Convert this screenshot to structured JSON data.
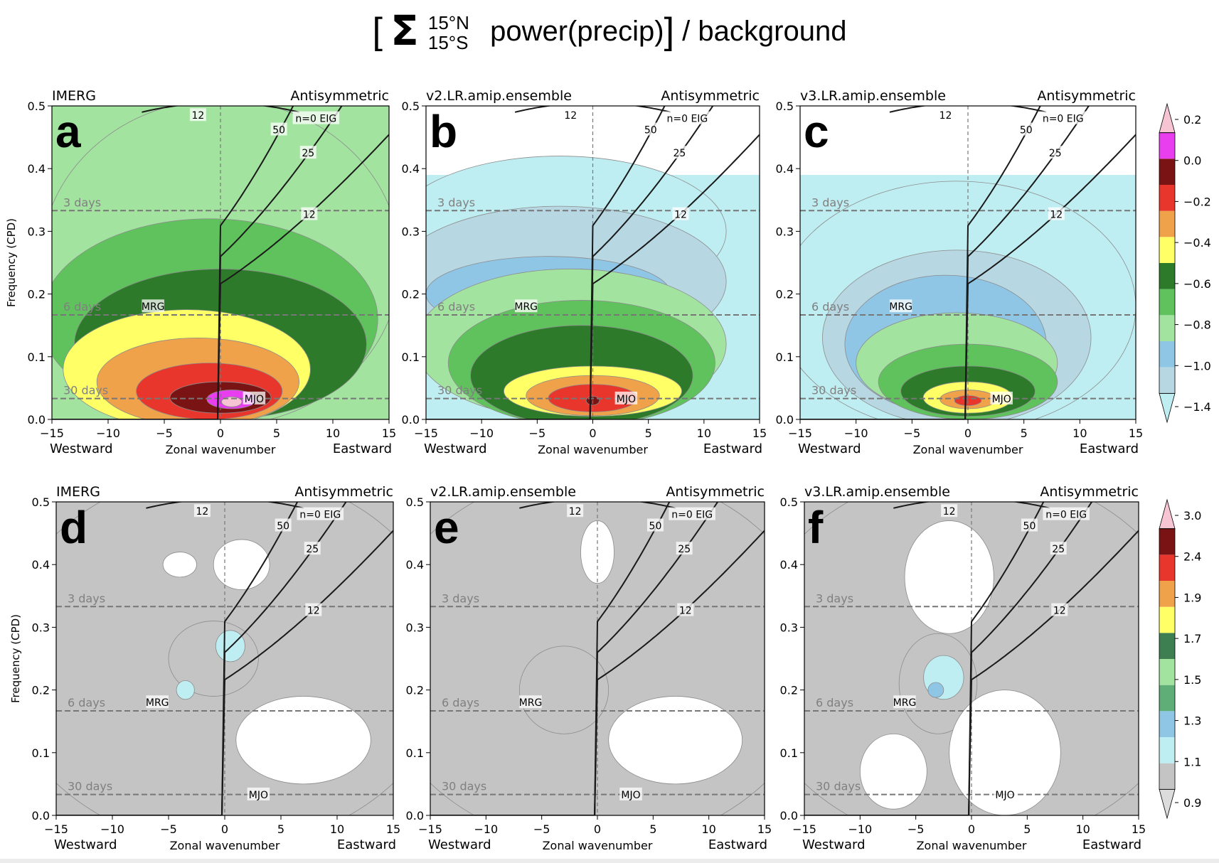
{
  "title": {
    "open_bracket": "[",
    "sigma": "Σ",
    "upper_limit": "15°N",
    "lower_limit": "15°S",
    "main": "power(precip)",
    "close_bracket": "]",
    "suffix": " / background"
  },
  "colors": {
    "grid_dash": "#777777",
    "curve": "#1a1a1a",
    "top_colorbar": [
      "#bfeef2",
      "#b7d7e3",
      "#8fc6e6",
      "#a3e3a0",
      "#5fc25d",
      "#2d7a2a",
      "#ffff66",
      "#f0a24a",
      "#e8362d",
      "#7a1414",
      "#e83ef0",
      "#f6c4d3"
    ],
    "bottom_colorbar": [
      "#dcdcdc",
      "#c4c4c4",
      "#bfeef2",
      "#8fc6e6",
      "#5fae78",
      "#a3e3a0",
      "#3d7f50",
      "#ffff66",
      "#f0a24a",
      "#e8362d",
      "#7a1414",
      "#f6c4d3"
    ]
  },
  "chart_data": [
    {
      "panel": "a",
      "type": "heatmap",
      "title_left": "IMERG",
      "title_right": "Antisymmetric",
      "xlabel": "Zonal wavenumber",
      "xlabel_left": "Westward",
      "xlabel_right": "Eastward",
      "ylabel": "Frequency (CPD)",
      "xlim": [
        -15,
        15
      ],
      "ylim": [
        0,
        0.5
      ],
      "xticks": [
        -15,
        -10,
        -5,
        0,
        5,
        10,
        15
      ],
      "yticks": [
        0.0,
        0.1,
        0.2,
        0.3,
        0.4,
        0.5
      ],
      "period_lines": [
        {
          "label": "3 days",
          "freq": 0.333
        },
        {
          "label": "6 days",
          "freq": 0.1667
        },
        {
          "label": "30 days",
          "freq": 0.0333
        }
      ],
      "dispersion_labels": [
        "n=0 EIG",
        "50",
        "25",
        "12",
        "12",
        "MRG",
        "MJO"
      ],
      "colorbar": {
        "ticks": [
          "0.2",
          "0.0",
          "−0.2",
          "−0.4",
          "−0.6",
          "−0.8",
          "−1.0",
          "−1.4"
        ]
      },
      "peak": {
        "k": 1,
        "freq": 0.03,
        "value": 0.1
      }
    },
    {
      "panel": "b",
      "type": "heatmap",
      "title_left": "v2.LR.amip.ensemble",
      "title_right": "Antisymmetric",
      "xlabel": "Zonal wavenumber",
      "xlabel_left": "Westward",
      "xlabel_right": "Eastward",
      "xlim": [
        -15,
        15
      ],
      "ylim": [
        0,
        0.5
      ],
      "period_lines": [
        {
          "label": "3 days",
          "freq": 0.333
        },
        {
          "label": "6 days",
          "freq": 0.1667
        },
        {
          "label": "30 days",
          "freq": 0.0333
        }
      ],
      "dispersion_labels": [
        "n=0 EIG",
        "50",
        "25",
        "12",
        "12",
        "MRG",
        "MJO"
      ],
      "peak": {
        "k": 0,
        "freq": 0.03,
        "value": -0.05
      }
    },
    {
      "panel": "c",
      "type": "heatmap",
      "title_left": "v3.LR.amip.ensemble",
      "title_right": "Antisymmetric",
      "xlabel": "Zonal wavenumber",
      "xlabel_left": "Westward",
      "xlabel_right": "Eastward",
      "xlim": [
        -15,
        15
      ],
      "ylim": [
        0,
        0.5
      ],
      "period_lines": [
        {
          "label": "3 days",
          "freq": 0.333
        },
        {
          "label": "6 days",
          "freq": 0.1667
        },
        {
          "label": "30 days",
          "freq": 0.0333
        }
      ],
      "dispersion_labels": [
        "n=0 EIG",
        "50",
        "25",
        "12",
        "12",
        "MRG",
        "MJO"
      ],
      "peak": {
        "k": 0,
        "freq": 0.03,
        "value": -0.25
      }
    },
    {
      "panel": "d",
      "type": "heatmap",
      "title_left": "IMERG",
      "title_right": "Antisymmetric",
      "xlabel": "Zonal wavenumber",
      "xlabel_left": "Westward",
      "xlabel_right": "Eastward",
      "ylabel": "Frequency (CPD)",
      "xlim": [
        -15,
        15
      ],
      "ylim": [
        0,
        0.5
      ],
      "period_lines": [
        {
          "label": "3 days",
          "freq": 0.333
        },
        {
          "label": "6 days",
          "freq": 0.1667
        },
        {
          "label": "30 days",
          "freq": 0.0333
        }
      ],
      "dispersion_labels": [
        "n=0 EIG",
        "50",
        "25",
        "12",
        "12",
        "MRG",
        "MJO"
      ],
      "colorbar": {
        "ticks": [
          "3.0",
          "2.4",
          "1.9",
          "1.7",
          "1.5",
          "1.3",
          "1.1",
          "0.9"
        ]
      },
      "peak": {
        "k": 0.5,
        "freq": 0.27,
        "value": 1.15
      }
    },
    {
      "panel": "e",
      "type": "heatmap",
      "title_left": "v2.LR.amip.ensemble",
      "title_right": "Antisymmetric",
      "xlabel": "Zonal wavenumber",
      "xlabel_left": "Westward",
      "xlabel_right": "Eastward",
      "xlim": [
        -15,
        15
      ],
      "ylim": [
        0,
        0.5
      ],
      "period_lines": [
        {
          "label": "3 days",
          "freq": 0.333
        },
        {
          "label": "6 days",
          "freq": 0.1667
        },
        {
          "label": "30 days",
          "freq": 0.0333
        }
      ],
      "dispersion_labels": [
        "n=0 EIG",
        "50",
        "25",
        "12",
        "12",
        "MRG",
        "MJO"
      ],
      "peak": {
        "k": -3,
        "freq": 0.2,
        "value": 1.05
      }
    },
    {
      "panel": "f",
      "type": "heatmap",
      "title_left": "v3.LR.amip.ensemble",
      "title_right": "Antisymmetric",
      "xlabel": "Zonal wavenumber",
      "xlabel_left": "Westward",
      "xlabel_right": "Eastward",
      "xlim": [
        -15,
        15
      ],
      "ylim": [
        0,
        0.5
      ],
      "period_lines": [
        {
          "label": "3 days",
          "freq": 0.333
        },
        {
          "label": "6 days",
          "freq": 0.1667
        },
        {
          "label": "30 days",
          "freq": 0.0333
        }
      ],
      "dispersion_labels": [
        "n=0 EIG",
        "50",
        "25",
        "12",
        "12",
        "MRG",
        "MJO"
      ],
      "peak": {
        "k": -3,
        "freq": 0.21,
        "value": 1.2
      }
    }
  ]
}
